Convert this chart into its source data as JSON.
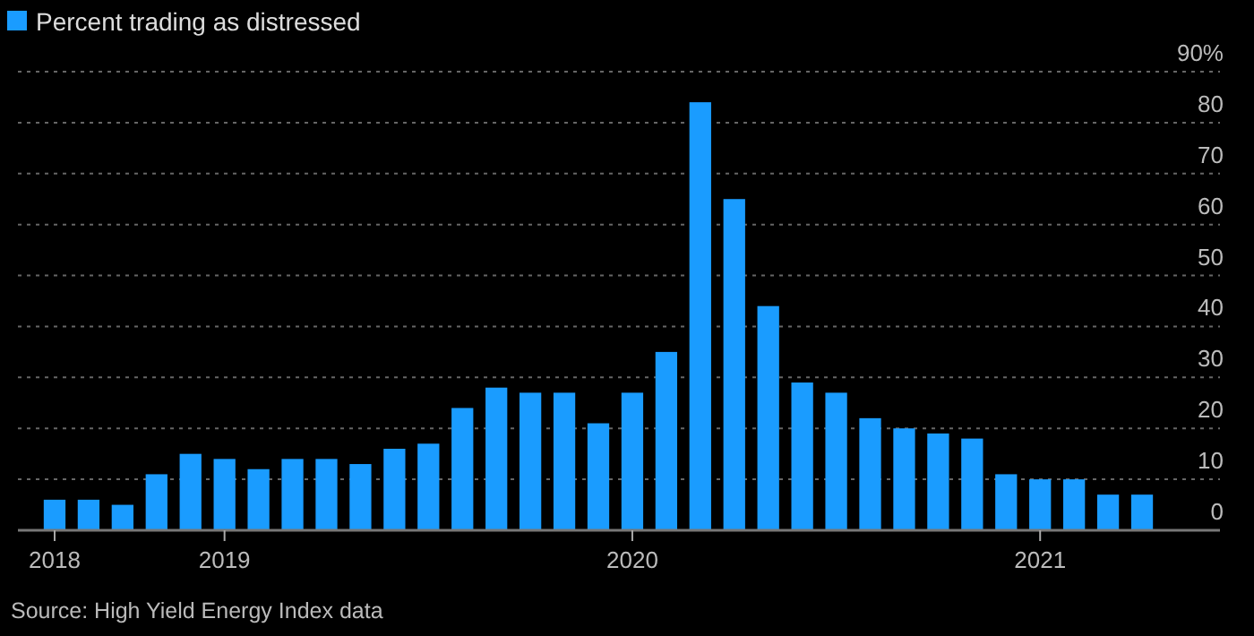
{
  "chart_data": {
    "type": "bar",
    "categories": [
      "2018",
      null,
      null,
      null,
      null,
      "2019",
      null,
      null,
      null,
      null,
      null,
      null,
      null,
      null,
      null,
      null,
      null,
      "2020",
      null,
      null,
      null,
      null,
      null,
      null,
      null,
      null,
      null,
      null,
      null,
      "2021",
      null,
      null,
      null
    ],
    "series": [
      {
        "name": "Percent trading as distressed",
        "color": "#1a9cff",
        "values": [
          6,
          6,
          5,
          11,
          15,
          14,
          12,
          14,
          14,
          13,
          16,
          17,
          24,
          28,
          27,
          27,
          21,
          27,
          35,
          84,
          65,
          44,
          29,
          27,
          22,
          20,
          19,
          18,
          11,
          10,
          10,
          7,
          7
        ]
      }
    ],
    "ylim": [
      0,
      90
    ],
    "yticks": [
      0,
      10,
      20,
      30,
      40,
      50,
      60,
      70,
      80,
      {
        "value": 90,
        "label": "90%"
      }
    ],
    "grid": "y",
    "legend": "top left",
    "annotations": [
      "Source: High Yield Energy Index data"
    ]
  }
}
